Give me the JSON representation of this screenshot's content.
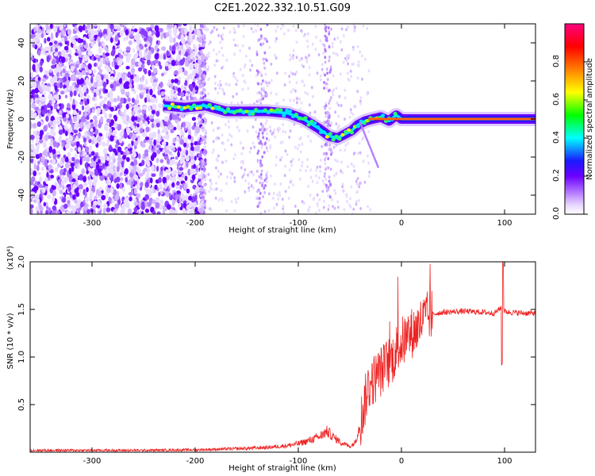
{
  "title": "C2E1.2022.332.10.51.G09",
  "chart_data": [
    {
      "type": "heatmap",
      "xlabel": "Height of straight line (km)",
      "ylabel": "Frequency (Hz)",
      "xlim": [
        -360,
        130
      ],
      "ylim": [
        -50,
        50
      ],
      "xticks": [
        -300,
        -200,
        -100,
        0,
        100
      ],
      "yticks": [
        -40,
        -20,
        0,
        20,
        40
      ],
      "colorbar": {
        "label": "Normalized spectral amplitude",
        "range": [
          0,
          1
        ],
        "ticks": [
          "0.0",
          "0.2",
          "0.4",
          "0.6",
          "0.8"
        ],
        "colors": [
          "#ffffff",
          "#e6d5ff",
          "#b070ff",
          "#6a00ff",
          "#1a1aff",
          "#00ffff",
          "#00ff00",
          "#ffff00",
          "#ff8000",
          "#ff0000",
          "#ff0080"
        ]
      },
      "ridge": {
        "x": [
          -230,
          -210,
          -190,
          -170,
          -150,
          -130,
          -110,
          -95,
          -80,
          -70,
          -62,
          -55,
          -48,
          -42,
          -35,
          -28,
          -20,
          -12,
          -5,
          0,
          20,
          60,
          100,
          130
        ],
        "y": [
          7,
          6,
          7,
          4,
          4,
          4,
          3,
          0,
          -5,
          -9,
          -10,
          -8,
          -6,
          -3,
          -1,
          0,
          1,
          -1,
          2,
          0,
          0,
          0,
          0,
          0
        ]
      }
    },
    {
      "type": "line",
      "xlabel": "Height of straight line (km)",
      "ylabel": "SNR (10 * v/v)",
      "y_multiplier": "(x10⁴)",
      "xlim": [
        -360,
        130
      ],
      "ylim": [
        0,
        2.0
      ],
      "xticks": [
        -300,
        -200,
        -100,
        0,
        100
      ],
      "yticks": [
        "0.5",
        "1.0",
        "1.5",
        "2.0"
      ],
      "color": "#ee2222",
      "series": [
        {
          "x": [
            -360,
            -300,
            -250,
            -200,
            -180,
            -150,
            -130,
            -110,
            -100,
            -90,
            -80,
            -72,
            -65,
            -58,
            -50,
            -45,
            -40,
            -35,
            -32,
            -28,
            -24,
            -20,
            -16,
            -12,
            -8,
            -4,
            0,
            5,
            10,
            15,
            20,
            25,
            30,
            40,
            60,
            80,
            90,
            95,
            98,
            100,
            105,
            120,
            130
          ],
          "y": [
            0.02,
            0.02,
            0.02,
            0.025,
            0.03,
            0.04,
            0.05,
            0.07,
            0.09,
            0.12,
            0.16,
            0.22,
            0.15,
            0.1,
            0.06,
            0.1,
            0.3,
            0.55,
            0.7,
            0.75,
            0.8,
            0.85,
            0.9,
            0.95,
            1.0,
            1.1,
            1.15,
            1.2,
            1.25,
            1.3,
            1.38,
            1.42,
            1.45,
            1.47,
            1.48,
            1.47,
            1.46,
            1.5,
            1.55,
            1.48,
            1.47,
            1.46,
            1.46
          ]
        }
      ]
    }
  ]
}
